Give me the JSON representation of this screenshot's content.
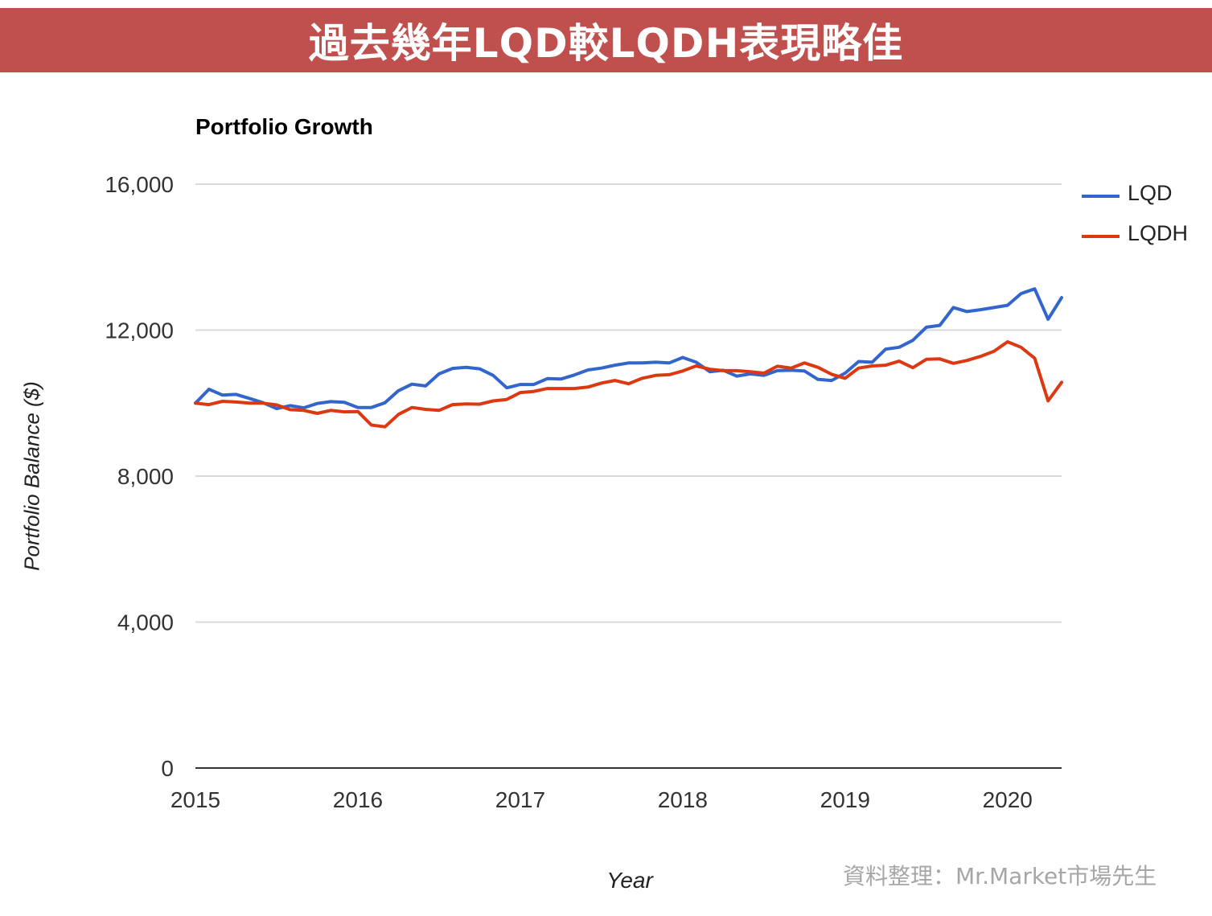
{
  "banner": {
    "title": "過去幾年LQD較LQDH表現略佳"
  },
  "credit": "資料整理：Mr.Market市場先生",
  "colors": {
    "banner": "#c0504d",
    "LQD": "#3366cc",
    "LQDH": "#dc3912",
    "grid": "#d9d9d9"
  },
  "chart_data": {
    "type": "line",
    "title": "Portfolio Growth",
    "xlabel": "Year",
    "ylabel": "Portfolio Balance ($)",
    "xlim": [
      2015.0,
      2020.333
    ],
    "ylim": [
      0,
      16000
    ],
    "x_ticks": [
      2015,
      2016,
      2017,
      2018,
      2019,
      2020
    ],
    "x_tick_labels": [
      "2015",
      "2016",
      "2017",
      "2018",
      "2019",
      "2020"
    ],
    "y_ticks": [
      0,
      4000,
      8000,
      12000,
      16000
    ],
    "y_tick_labels": [
      "0",
      "4,000",
      "8,000",
      "12,000",
      "16,000"
    ],
    "grid": true,
    "legend_position": "right",
    "x": [
      2015.0,
      2015.083,
      2015.167,
      2015.25,
      2015.333,
      2015.417,
      2015.5,
      2015.583,
      2015.667,
      2015.75,
      2015.833,
      2015.917,
      2016.0,
      2016.083,
      2016.167,
      2016.25,
      2016.333,
      2016.417,
      2016.5,
      2016.583,
      2016.667,
      2016.75,
      2016.833,
      2016.917,
      2017.0,
      2017.083,
      2017.167,
      2017.25,
      2017.333,
      2017.417,
      2017.5,
      2017.583,
      2017.667,
      2017.75,
      2017.833,
      2017.917,
      2018.0,
      2018.083,
      2018.167,
      2018.25,
      2018.333,
      2018.417,
      2018.5,
      2018.583,
      2018.667,
      2018.75,
      2018.833,
      2018.917,
      2019.0,
      2019.083,
      2019.167,
      2019.25,
      2019.333,
      2019.417,
      2019.5,
      2019.583,
      2019.667,
      2019.75,
      2019.833,
      2019.917,
      2020.0,
      2020.083,
      2020.167,
      2020.25,
      2020.333
    ],
    "series": [
      {
        "name": "LQD",
        "color": "#3366cc",
        "values": [
          10000,
          10380,
          10220,
          10240,
          10130,
          10010,
          9850,
          9930,
          9870,
          9990,
          10040,
          10020,
          9880,
          9880,
          10010,
          10340,
          10520,
          10470,
          10800,
          10950,
          10980,
          10940,
          10760,
          10420,
          10510,
          10510,
          10670,
          10660,
          10770,
          10910,
          10960,
          11040,
          11100,
          11100,
          11120,
          11100,
          11250,
          11120,
          10860,
          10900,
          10740,
          10800,
          10760,
          10890,
          10900,
          10880,
          10650,
          10620,
          10820,
          11140,
          11120,
          11480,
          11530,
          11720,
          12080,
          12130,
          12620,
          12510,
          12560,
          12620,
          12680,
          13000,
          13130,
          12300,
          12890
        ]
      },
      {
        "name": "LQDH",
        "color": "#dc3912",
        "values": [
          10000,
          9960,
          10050,
          10030,
          10000,
          10000,
          9950,
          9820,
          9800,
          9720,
          9800,
          9760,
          9770,
          9400,
          9350,
          9690,
          9880,
          9830,
          9800,
          9960,
          9980,
          9970,
          10060,
          10100,
          10290,
          10320,
          10400,
          10400,
          10400,
          10440,
          10550,
          10620,
          10530,
          10680,
          10760,
          10780,
          10880,
          11020,
          10930,
          10890,
          10890,
          10860,
          10820,
          11010,
          10960,
          11100,
          10980,
          10790,
          10680,
          10960,
          11020,
          11040,
          11150,
          10970,
          11200,
          11210,
          11090,
          11170,
          11280,
          11420,
          11680,
          11530,
          11230,
          10060,
          10570
        ]
      }
    ]
  }
}
